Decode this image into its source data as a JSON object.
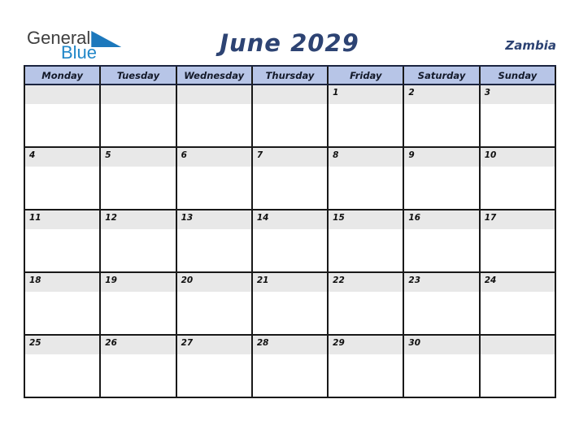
{
  "logo": {
    "general": "General",
    "blue": "Blue"
  },
  "title": "June 2029",
  "country": "Zambia",
  "colors": {
    "title_navy": "#2d4373",
    "header_bg": "#b7c5e7",
    "date_band_gray": "#e8e8e8",
    "logo_blue": "#2187c8",
    "logo_flag_blue": "#1c78bc",
    "grid_border": "#191919"
  },
  "calendar": {
    "day_headers": [
      "Monday",
      "Tuesday",
      "Wednesday",
      "Thursday",
      "Friday",
      "Saturday",
      "Sunday"
    ],
    "weeks": [
      [
        "",
        "",
        "",
        "",
        "1",
        "2",
        "3"
      ],
      [
        "4",
        "5",
        "6",
        "7",
        "8",
        "9",
        "10"
      ],
      [
        "11",
        "12",
        "13",
        "14",
        "15",
        "16",
        "17"
      ],
      [
        "18",
        "19",
        "20",
        "21",
        "22",
        "23",
        "24"
      ],
      [
        "25",
        "26",
        "27",
        "28",
        "29",
        "30",
        ""
      ]
    ]
  }
}
